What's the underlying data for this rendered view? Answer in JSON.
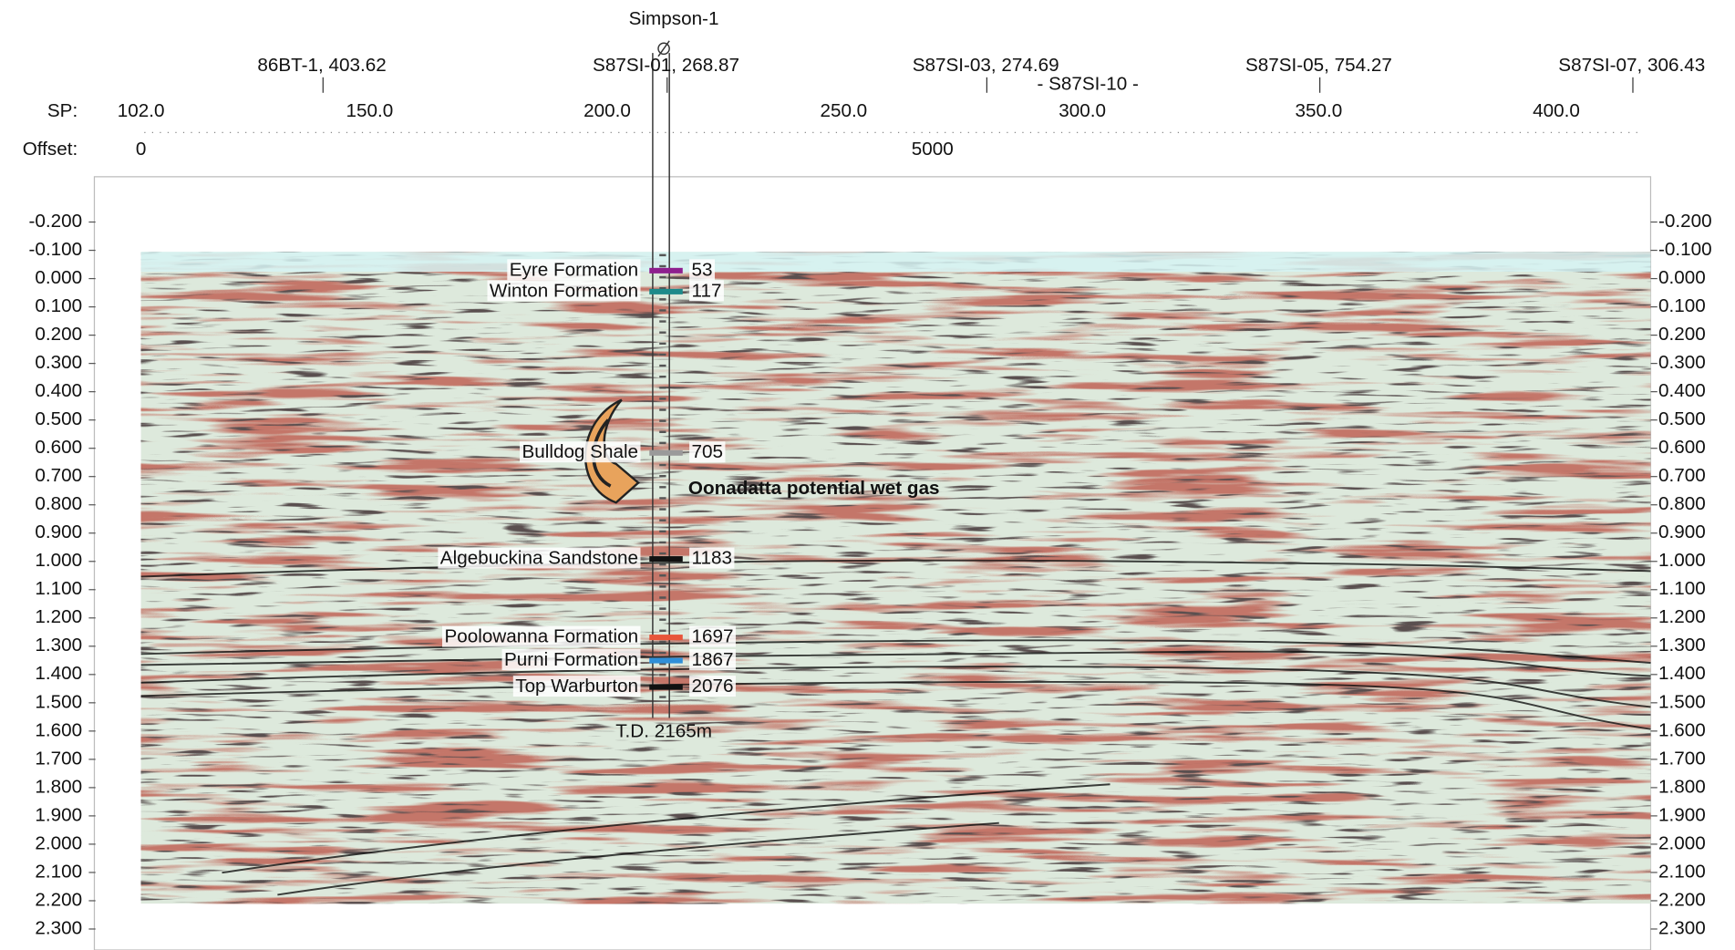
{
  "well": {
    "name": "Simpson-1"
  },
  "ties": [
    "86BT-1, 403.62",
    "S87SI-01, 268.87",
    "S87SI-03, 274.69",
    "S87SI-05, 754.27",
    "S87SI-07, 306.43"
  ],
  "tie_center": "- S87SI-10 -",
  "sp": {
    "label": "SP:",
    "values": [
      "102.0",
      "150.0",
      "200.0",
      "250.0",
      "300.0",
      "350.0",
      "400.0"
    ]
  },
  "offset": {
    "label": "Offset:",
    "values": [
      "0",
      "5000"
    ]
  },
  "time_axis": {
    "labels": [
      "-0.200",
      "-0.100",
      "0.000",
      "0.100",
      "0.200",
      "0.300",
      "0.400",
      "0.500",
      "0.600",
      "0.700",
      "0.800",
      "0.900",
      "1.000",
      "1.100",
      "1.200",
      "1.300",
      "1.400",
      "1.500",
      "1.600",
      "1.700",
      "1.800",
      "1.900",
      "2.000",
      "2.100",
      "2.200",
      "2.300"
    ]
  },
  "formations": [
    {
      "name": "Eyre Formation",
      "depth": 53,
      "color": "#8e1f8e"
    },
    {
      "name": "Winton Formation",
      "depth": 117,
      "color": "#1d8a8a"
    },
    {
      "name": "Bulldog Shale",
      "depth": 705,
      "color": "#9a9a9a"
    },
    {
      "name": "Algebuckina Sandstone",
      "depth": 1183,
      "color": "#111111"
    },
    {
      "name": "Poolowanna Formation",
      "depth": 1697,
      "color": "#e8553a"
    },
    {
      "name": "Purni Formation",
      "depth": 1867,
      "color": "#2f8fd8"
    },
    {
      "name": "Top Warburton",
      "depth": 2076,
      "color": "#111111"
    }
  ],
  "td": "T.D. 2165m",
  "annotation": "Oonadatta potential wet gas"
}
